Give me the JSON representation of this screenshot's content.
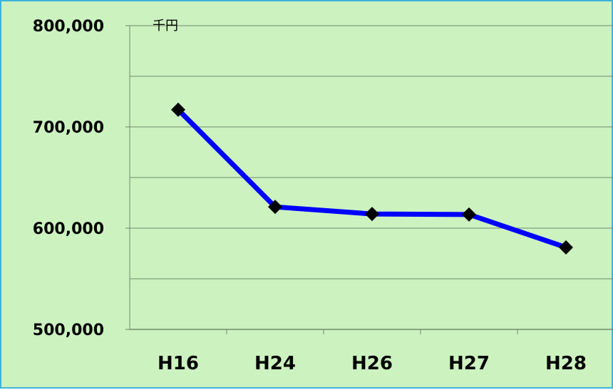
{
  "chart_data": {
    "type": "line",
    "unit_label": "千円",
    "categories": [
      "H16",
      "H24",
      "H26",
      "H27",
      "H28"
    ],
    "series": [
      {
        "values": [
          717000,
          621000,
          614000,
          613500,
          581000
        ],
        "color": "#0000ff"
      }
    ],
    "ylim": [
      500000,
      800000
    ],
    "y_ticks": [
      500000,
      600000,
      700000,
      800000
    ],
    "y_tick_labels": [
      "500,000",
      "600,000",
      "700,000",
      "800,000"
    ],
    "grid": true,
    "legend": "none",
    "marker": "diamond",
    "colors": {
      "background": "#ccf2c0",
      "border": "#3fb2dc",
      "gridline": "#6f8a6a",
      "line": "#0000ff",
      "marker": "#000000"
    }
  }
}
